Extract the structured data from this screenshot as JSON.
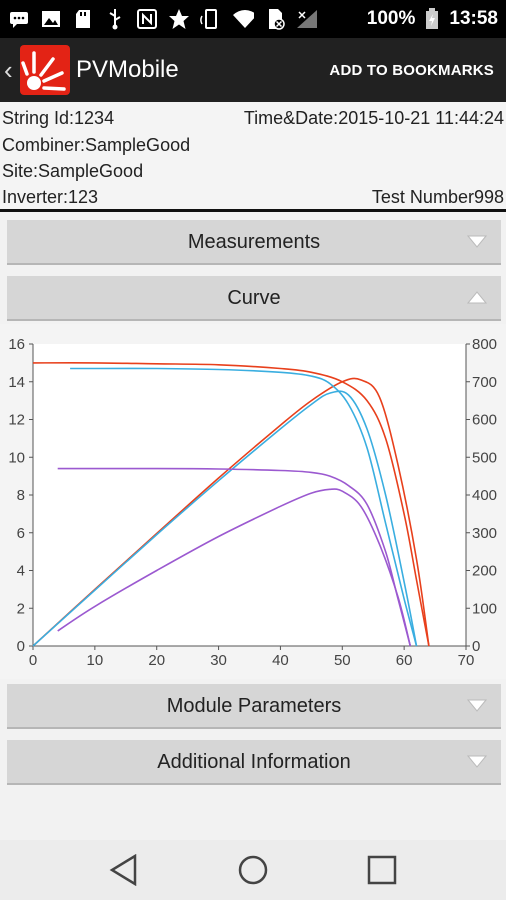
{
  "status_bar": {
    "battery": "100%",
    "time": "13:58",
    "icons": [
      "message-icon",
      "image-icon",
      "sd-card-icon",
      "usb-icon",
      "nfc-icon",
      "star-icon",
      "screen-rotation-icon",
      "wifi-icon",
      "no-sim-icon",
      "signal-icon",
      "battery-icon"
    ]
  },
  "app_bar": {
    "title": "PVMobile",
    "action": "ADD TO BOOKMARKS"
  },
  "info": {
    "string_id": "String Id:1234",
    "datetime": "Time&Date:2015-10-21 11:44:24",
    "combiner": "Combiner:SampleGood",
    "site": "Site:SampleGood",
    "inverter": "Inverter:123",
    "test_number": "Test Number998"
  },
  "sections": {
    "measurements": "Measurements",
    "curve": "Curve",
    "module_parameters": "Module Parameters",
    "additional_information": "Additional Information"
  },
  "chart_data": {
    "type": "line",
    "title": "",
    "xlabel": "",
    "ylabel": "",
    "y2label": "",
    "xlim": [
      0,
      70
    ],
    "ylim": [
      0,
      16
    ],
    "y2lim": [
      0,
      800
    ],
    "x_ticks": [
      "0",
      "10",
      "20",
      "30",
      "40",
      "50",
      "60",
      "70"
    ],
    "y_ticks": [
      "0",
      "2",
      "4",
      "6",
      "8",
      "10",
      "12",
      "14",
      "16"
    ],
    "y2_ticks": [
      "0",
      "100",
      "200",
      "300",
      "400",
      "500",
      "600",
      "700",
      "800"
    ],
    "grid": false,
    "legend": "none",
    "series": [
      {
        "color": "#e8401c",
        "axis": "left",
        "x": [
          0,
          10,
          20,
          30,
          40,
          45,
          50,
          54,
          57,
          60,
          62,
          64
        ],
        "y": [
          15.0,
          15.0,
          14.95,
          14.9,
          14.7,
          14.5,
          14.0,
          13.0,
          11.0,
          7.0,
          3.5,
          0
        ]
      },
      {
        "color": "#e8401c",
        "axis": "right",
        "x": [
          0,
          10,
          20,
          30,
          40,
          45,
          50,
          53,
          56,
          59,
          62,
          64
        ],
        "y": [
          0,
          150,
          298,
          445,
          585,
          650,
          700,
          705,
          660,
          480,
          230,
          0
        ]
      },
      {
        "color": "#3aaee0",
        "axis": "left",
        "x": [
          6,
          10,
          20,
          30,
          40,
          45,
          48,
          51,
          54,
          57,
          60,
          62
        ],
        "y": [
          14.7,
          14.7,
          14.7,
          14.65,
          14.5,
          14.3,
          13.9,
          12.8,
          10.5,
          6.5,
          2.5,
          0
        ]
      },
      {
        "color": "#3aaee0",
        "axis": "right",
        "x": [
          0,
          10,
          20,
          30,
          40,
          45,
          48,
          51,
          54,
          57,
          60,
          62
        ],
        "y": [
          0,
          148,
          295,
          438,
          575,
          640,
          670,
          665,
          575,
          400,
          170,
          0
        ]
      },
      {
        "color": "#9b59d0",
        "axis": "left",
        "x": [
          4,
          10,
          20,
          30,
          40,
          45,
          48,
          51,
          54,
          57,
          59,
          61
        ],
        "y": [
          9.4,
          9.4,
          9.4,
          9.38,
          9.3,
          9.2,
          9.0,
          8.5,
          7.5,
          5.0,
          2.5,
          0
        ]
      },
      {
        "color": "#9b59d0",
        "axis": "right",
        "x": [
          4,
          10,
          20,
          30,
          40,
          45,
          48,
          50,
          53,
          56,
          59,
          61
        ],
        "y": [
          40,
          105,
          200,
          290,
          370,
          405,
          415,
          410,
          370,
          270,
          130,
          0
        ]
      }
    ]
  }
}
